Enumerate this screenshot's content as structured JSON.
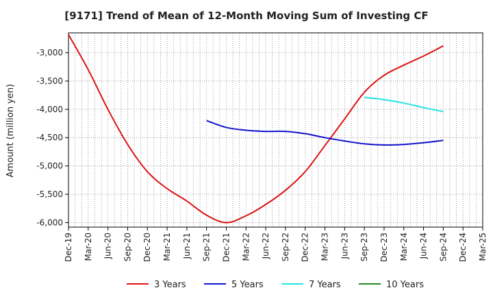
{
  "chart_data": {
    "type": "line",
    "title": "[9171]  Trend of Mean of 12-Month Moving Sum of Investing CF",
    "xlabel": "",
    "ylabel": "Amount (million yen)",
    "ylim": [
      -6080,
      -2650
    ],
    "yticks": [
      -3000,
      -3500,
      -4000,
      -4500,
      -5000,
      -5500,
      -6000
    ],
    "ytick_labels": [
      "-3,000",
      "-3,500",
      "-4,000",
      "-4,500",
      "-5,000",
      "-5,500",
      "-6,000"
    ],
    "categories": [
      "Dec-19",
      "Mar-20",
      "Jun-20",
      "Sep-20",
      "Dec-20",
      "Mar-21",
      "Jun-21",
      "Sep-21",
      "Dec-21",
      "Mar-22",
      "Jun-22",
      "Sep-22",
      "Dec-22",
      "Mar-23",
      "Jun-23",
      "Sep-23",
      "Dec-23",
      "Mar-24",
      "Jun-24",
      "Sep-24",
      "Dec-24",
      "Mar-25"
    ],
    "grid": true,
    "legend_position": "bottom",
    "series": [
      {
        "name": "3 Years",
        "color": "#dd1111",
        "values": [
          -2680,
          -3300,
          -4000,
          -4620,
          -5100,
          -5400,
          -5620,
          -5870,
          -6000,
          -5880,
          -5680,
          -5430,
          -5100,
          -4640,
          -4170,
          -3700,
          -3400,
          -3220,
          -3060,
          -2880,
          null,
          null
        ]
      },
      {
        "name": "5 Years",
        "color": "#1111cc",
        "values": [
          null,
          null,
          null,
          null,
          null,
          null,
          null,
          -4200,
          -4320,
          -4370,
          -4390,
          -4390,
          -4430,
          -4500,
          -4560,
          -4610,
          -4630,
          -4620,
          -4590,
          -4550,
          null,
          null
        ]
      },
      {
        "name": "7 Years",
        "color": "#22e5e5",
        "values": [
          null,
          null,
          null,
          null,
          null,
          null,
          null,
          null,
          null,
          null,
          null,
          null,
          null,
          null,
          null,
          -3790,
          -3830,
          -3890,
          -3970,
          -4040,
          null,
          null
        ]
      },
      {
        "name": "10 Years",
        "color": "#228822",
        "values": [
          null,
          null,
          null,
          null,
          null,
          null,
          null,
          null,
          null,
          null,
          null,
          null,
          null,
          null,
          null,
          null,
          null,
          null,
          null,
          null,
          null,
          null
        ]
      }
    ]
  }
}
